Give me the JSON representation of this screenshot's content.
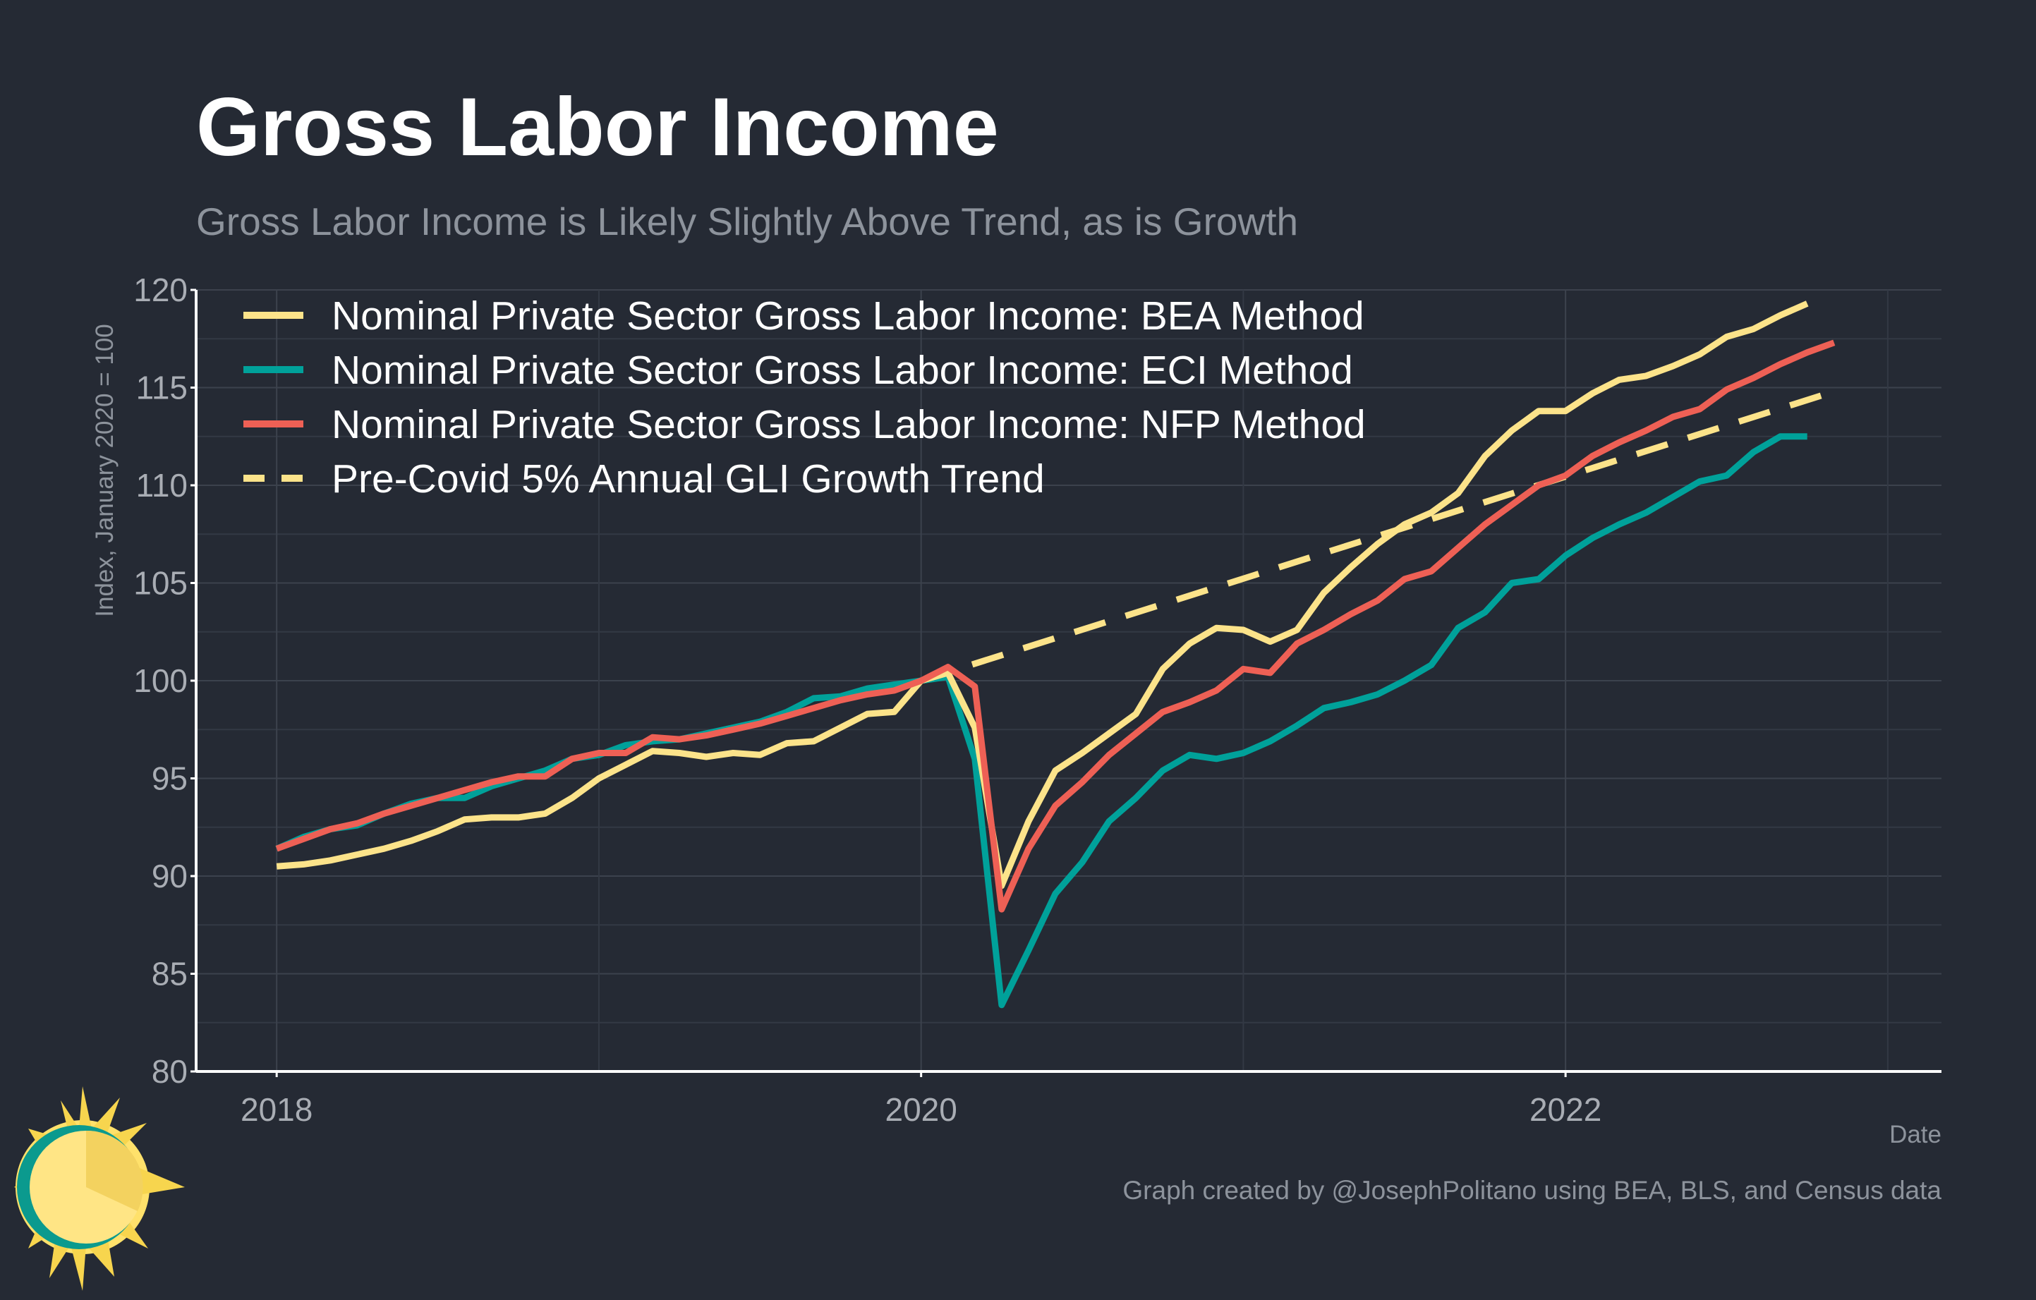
{
  "header": {
    "title": "Gross Labor Income",
    "subtitle": "Gross Labor Income is Likely Slightly Above Trend, as is Growth"
  },
  "caption": "Graph created by @JosephPolitano using BEA, BLS, and Census data",
  "logo_icon": "sun-logo-icon",
  "chart_data": {
    "type": "line",
    "title": "Gross Labor Income",
    "subtitle": "Gross Labor Income is Likely Slightly Above Trend, as is Growth",
    "xlabel": "Date",
    "ylabel": "Index, January 2020 = 100",
    "x_start": "2018-01",
    "x_frequency": "monthly",
    "xlim": [
      "2017-10",
      "2023-03"
    ],
    "ylim": [
      80,
      120
    ],
    "x_ticks": [
      "2018",
      "2020",
      "2022"
    ],
    "y_ticks": [
      80,
      85,
      90,
      95,
      100,
      105,
      110,
      115,
      120
    ],
    "grid": true,
    "legend_position": "top-left",
    "series": [
      {
        "name": "Nominal Private Sector Gross Labor Income: BEA Method",
        "color": "#fce38a",
        "style": "solid",
        "values": [
          90.5,
          90.6,
          90.8,
          91.1,
          91.4,
          91.8,
          92.3,
          92.9,
          93.0,
          93.0,
          93.2,
          94.0,
          95.0,
          95.7,
          96.4,
          96.3,
          96.1,
          96.3,
          96.2,
          96.8,
          96.9,
          97.6,
          98.3,
          98.4,
          100.0,
          100.4,
          97.6,
          89.5,
          92.8,
          95.4,
          96.3,
          97.3,
          98.3,
          100.6,
          101.9,
          102.7,
          102.6,
          102.0,
          102.6,
          104.5,
          105.8,
          107.0,
          108.0,
          108.6,
          109.6,
          111.5,
          112.8,
          113.8,
          113.8,
          114.7,
          115.4,
          115.6,
          116.1,
          116.7,
          117.6,
          118.0,
          118.7,
          119.3
        ]
      },
      {
        "name": "Nominal Private Sector Gross Labor Income: ECI Method",
        "color": "#00a19a",
        "style": "solid",
        "values": [
          91.4,
          92.0,
          92.4,
          92.6,
          93.2,
          93.7,
          94.0,
          94.0,
          94.6,
          95.0,
          95.4,
          96.0,
          96.2,
          96.7,
          96.9,
          97.0,
          97.3,
          97.6,
          97.9,
          98.4,
          99.1,
          99.2,
          99.6,
          99.8,
          100.0,
          100.2,
          96.0,
          83.4,
          86.2,
          89.1,
          90.7,
          92.8,
          94.0,
          95.4,
          96.2,
          96.0,
          96.3,
          96.9,
          97.7,
          98.6,
          98.9,
          99.3,
          100.0,
          100.8,
          102.7,
          103.5,
          105.0,
          105.2,
          106.4,
          107.3,
          108.0,
          108.6,
          109.4,
          110.2,
          110.5,
          111.7,
          112.5,
          112.5
        ]
      },
      {
        "name": "Nominal Private Sector Gross Labor Income: NFP Method",
        "color": "#ee6055",
        "style": "solid",
        "values": [
          91.4,
          91.9,
          92.4,
          92.7,
          93.2,
          93.6,
          94.0,
          94.4,
          94.8,
          95.1,
          95.1,
          96.0,
          96.3,
          96.3,
          97.1,
          97.0,
          97.2,
          97.5,
          97.8,
          98.2,
          98.6,
          99.0,
          99.3,
          99.5,
          100.0,
          100.7,
          99.7,
          88.3,
          91.4,
          93.6,
          94.8,
          96.2,
          97.3,
          98.4,
          98.9,
          99.5,
          100.6,
          100.4,
          101.9,
          102.6,
          103.4,
          104.1,
          105.2,
          105.6,
          106.8,
          108.0,
          109.0,
          110.0,
          110.5,
          111.5,
          112.2,
          112.8,
          113.5,
          113.9,
          114.9,
          115.5,
          116.2,
          116.8,
          117.3
        ]
      },
      {
        "name": "Pre-Covid 5% Annual GLI Growth Trend",
        "color": "#fce38a",
        "style": "dashed",
        "trend_start": "2020-01",
        "trend_start_value": 100,
        "annual_growth_pct": 5,
        "trend_end": "2022-11",
        "trend_end_value": 114.8
      }
    ]
  }
}
